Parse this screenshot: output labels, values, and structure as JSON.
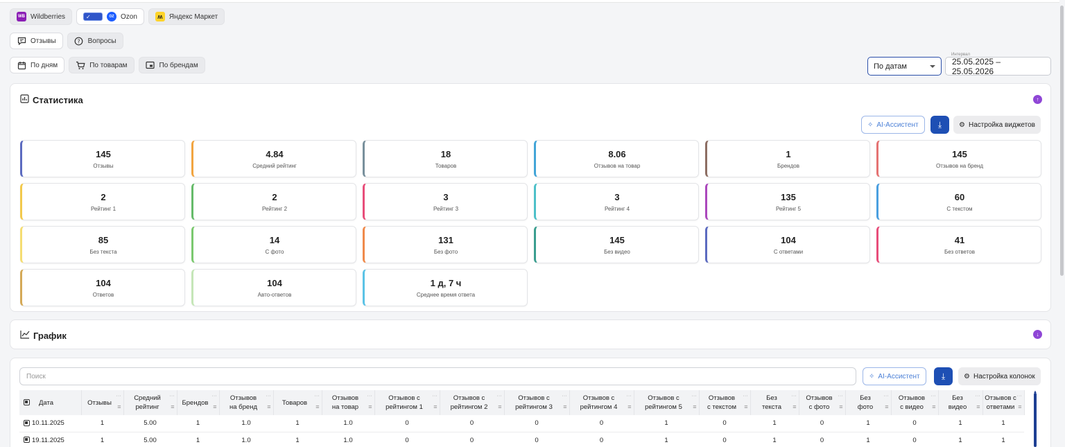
{
  "marketplaces": [
    {
      "label": "Wildberries",
      "icon": "wb-logo-icon",
      "color": "#8b1fb5"
    },
    {
      "label": "Ozon",
      "icon": "ozon-logo-icon",
      "color": "#1e5eff"
    },
    {
      "label": "Яндекс Маркет",
      "icon": "yandex-market-logo-icon",
      "color": "#fed42b"
    }
  ],
  "content_tabs": [
    {
      "label": "Отзывы",
      "icon": "message-icon"
    },
    {
      "label": "Вопросы",
      "icon": "question-icon"
    }
  ],
  "group_tabs": [
    {
      "label": "По дням",
      "icon": "calendar-icon"
    },
    {
      "label": "По товарам",
      "icon": "cart-icon"
    },
    {
      "label": "По брендам",
      "icon": "brand-icon"
    }
  ],
  "filter": {
    "mode_value": "По датам",
    "interval_label": "Интервал",
    "interval_value": "25.05.2025 – 25.05.2026"
  },
  "stats": {
    "title": "Статистика",
    "ai_label": "AI-Ассистент",
    "settings_label": "Настройка виджетов",
    "cards": [
      {
        "value": "145",
        "label": "Отзывы",
        "color": "#5c6bc0"
      },
      {
        "value": "4.84",
        "label": "Средний рейтинг",
        "color": "#f2a541"
      },
      {
        "value": "18",
        "label": "Товаров",
        "color": "#78909c"
      },
      {
        "value": "8.06",
        "label": "Отзывов на товар",
        "color": "#42a5d8"
      },
      {
        "value": "1",
        "label": "Брендов",
        "color": "#8d6e63"
      },
      {
        "value": "145",
        "label": "Отзывов на бренд",
        "color": "#e57373"
      },
      {
        "value": "2",
        "label": "Рейтинг 1",
        "color": "#f2c94c"
      },
      {
        "value": "2",
        "label": "Рейтинг 2",
        "color": "#66bb6a"
      },
      {
        "value": "3",
        "label": "Рейтинг 3",
        "color": "#e84d7a"
      },
      {
        "value": "3",
        "label": "Рейтинг 4",
        "color": "#4dc0c9"
      },
      {
        "value": "135",
        "label": "Рейтинг 5",
        "color": "#ab47bc"
      },
      {
        "value": "60",
        "label": "С текстом",
        "color": "#4a9fe0"
      },
      {
        "value": "85",
        "label": "Без текста",
        "color": "#f5dd72"
      },
      {
        "value": "14",
        "label": "С фото",
        "color": "#7bc96f"
      },
      {
        "value": "131",
        "label": "Без фото",
        "color": "#f08a4b"
      },
      {
        "value": "145",
        "label": "Без видео",
        "color": "#3a9e8f"
      },
      {
        "value": "104",
        "label": "С ответами",
        "color": "#5c6bc0"
      },
      {
        "value": "41",
        "label": "Без ответов",
        "color": "#e84d7a"
      },
      {
        "value": "104",
        "label": "Ответов",
        "color": "#d4a957"
      },
      {
        "value": "104",
        "label": "Авто-ответов",
        "color": "#c5e6b8"
      },
      {
        "value": "1 д, 7 ч",
        "label": "Среднее время ответа",
        "color": "#5bc3e6"
      }
    ]
  },
  "graph": {
    "title": "График"
  },
  "table": {
    "search_placeholder": "Поиск",
    "ai_label": "AI-Ассистент",
    "settings_label": "Настройка колонок",
    "columns": [
      {
        "l1": "Дата",
        "l2": ""
      },
      {
        "l1": "Отзывы",
        "l2": ""
      },
      {
        "l1": "Средний",
        "l2": "рейтинг"
      },
      {
        "l1": "Брендов",
        "l2": ""
      },
      {
        "l1": "Отзывов",
        "l2": "на бренд"
      },
      {
        "l1": "Товаров",
        "l2": ""
      },
      {
        "l1": "Отзывов",
        "l2": "на товар"
      },
      {
        "l1": "Отзывов с",
        "l2": "рейтингом 1"
      },
      {
        "l1": "Отзывов с",
        "l2": "рейтингом 2"
      },
      {
        "l1": "Отзывов с",
        "l2": "рейтингом 3"
      },
      {
        "l1": "Отзывов с",
        "l2": "рейтингом 4"
      },
      {
        "l1": "Отзывов с",
        "l2": "рейтингом 5"
      },
      {
        "l1": "Отзывов",
        "l2": "с текстом"
      },
      {
        "l1": "Без",
        "l2": "текста"
      },
      {
        "l1": "Отзывов",
        "l2": "с фото"
      },
      {
        "l1": "Без",
        "l2": "фото"
      },
      {
        "l1": "Отзывов",
        "l2": "с видео"
      },
      {
        "l1": "Без",
        "l2": "видео"
      },
      {
        "l1": "Отзывов с",
        "l2": "ответами"
      }
    ],
    "rows": [
      [
        "10.11.2025",
        "1",
        "5.00",
        "1",
        "1.0",
        "1",
        "1.0",
        "0",
        "0",
        "0",
        "0",
        "1",
        "0",
        "1",
        "0",
        "1",
        "0",
        "1",
        "1"
      ],
      [
        "19.11.2025",
        "1",
        "5.00",
        "1",
        "1.0",
        "1",
        "1.0",
        "0",
        "0",
        "0",
        "0",
        "1",
        "0",
        "1",
        "0",
        "1",
        "0",
        "1",
        "1"
      ]
    ]
  }
}
